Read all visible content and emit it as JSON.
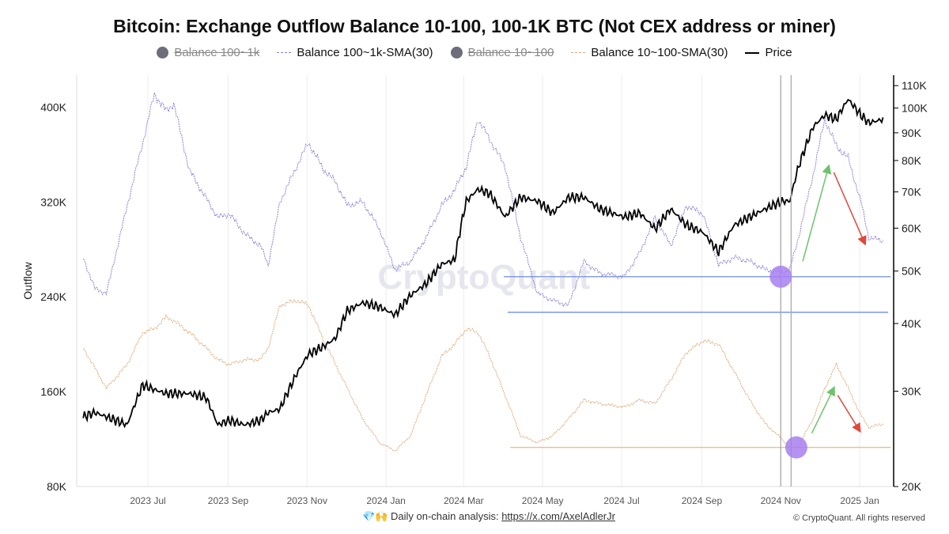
{
  "chart_data": {
    "type": "line",
    "title": "Bitcoin: Exchange Outflow Balance 10-100, 100-1K BTC (Not CEX address or miner)",
    "ylabel": "Outflow",
    "ylim": [
      80000,
      427000
    ],
    "y2lim": [
      20000,
      115000
    ],
    "y2scale": "log",
    "xlim": [
      "2023-05-07",
      "2025-01-26"
    ],
    "grid": "vertical",
    "legend_position": "top",
    "x_ticks": [
      "2023 Jul",
      "2023 Sep",
      "2023 Nov",
      "2024 Jan",
      "2024 Mar",
      "2024 May",
      "2024 Jul",
      "2024 Sep",
      "2024 Nov",
      "2025 Jan"
    ],
    "x_tick_dates": [
      "2023-07-01",
      "2023-09-01",
      "2023-11-01",
      "2024-01-01",
      "2024-03-01",
      "2024-05-01",
      "2024-07-01",
      "2024-09-01",
      "2024-11-01",
      "2025-01-01"
    ],
    "y_ticks": [
      "80K",
      "160K",
      "240K",
      "320K",
      "400K"
    ],
    "y_tick_values": [
      80000,
      160000,
      240000,
      320000,
      400000
    ],
    "y2_ticks": [
      "20K",
      "30K",
      "40K",
      "50K",
      "60K",
      "70K",
      "80K",
      "90K",
      "100K",
      "110K"
    ],
    "y2_tick_values": [
      20000,
      30000,
      40000,
      50000,
      60000,
      70000,
      80000,
      90000,
      100000,
      110000
    ],
    "legend": [
      {
        "label": "Balance 100~1k",
        "hidden": true,
        "color": "#6e6e7a"
      },
      {
        "label": "Balance 100~1k-SMA(30)",
        "hidden": false,
        "color": "#8f7fd6"
      },
      {
        "label": "Balance 10~100",
        "hidden": true,
        "color": "#6e6e7a"
      },
      {
        "label": "Balance 10~100-SMA(30)",
        "hidden": false,
        "color": "#e0a878"
      },
      {
        "label": "Price",
        "hidden": false,
        "color": "#000000"
      }
    ],
    "dates": [
      "2023-05-12",
      "2023-05-21",
      "2023-05-30",
      "2023-06-15",
      "2023-06-27",
      "2023-07-06",
      "2023-07-15",
      "2023-07-21",
      "2023-08-02",
      "2023-08-15",
      "2023-08-24",
      "2023-09-02",
      "2023-09-14",
      "2023-09-26",
      "2023-10-02",
      "2023-10-11",
      "2023-10-24",
      "2023-11-02",
      "2023-11-14",
      "2023-11-23",
      "2023-12-02",
      "2023-12-14",
      "2023-12-27",
      "2024-01-08",
      "2024-01-20",
      "2024-02-01",
      "2024-02-13",
      "2024-02-23",
      "2024-03-03",
      "2024-03-12",
      "2024-03-21",
      "2024-04-02",
      "2024-04-14",
      "2024-04-27",
      "2024-05-09",
      "2024-05-21",
      "2024-06-02",
      "2024-06-14",
      "2024-07-03",
      "2024-07-15",
      "2024-07-27",
      "2024-08-08",
      "2024-08-20",
      "2024-09-02",
      "2024-09-14",
      "2024-09-26",
      "2024-10-08",
      "2024-10-20",
      "2024-11-02",
      "2024-11-08",
      "2024-11-14",
      "2024-11-26",
      "2024-12-05",
      "2024-12-14",
      "2024-12-23",
      "2025-01-02",
      "2025-01-08",
      "2025-01-20"
    ],
    "series": [
      {
        "name": "Balance 100~1k-SMA(30)",
        "axis": "left",
        "color": "#8f7fd6",
        "style": "dashed",
        "values": [
          273000,
          247000,
          243000,
          317000,
          370000,
          411000,
          397000,
          403000,
          347000,
          323000,
          307000,
          310000,
          293000,
          283000,
          267000,
          320000,
          350000,
          370000,
          347000,
          337000,
          317000,
          320000,
          297000,
          263000,
          270000,
          290000,
          317000,
          330000,
          350000,
          390000,
          373000,
          350000,
          290000,
          243000,
          237000,
          233000,
          270000,
          260000,
          257000,
          277000,
          307000,
          283000,
          317000,
          310000,
          267000,
          273000,
          270000,
          263000,
          260000,
          263000,
          287000,
          343000,
          390000,
          367000,
          357000,
          320000,
          290000,
          287000
        ]
      },
      {
        "name": "Balance 10~100-SMA(30)",
        "axis": "left",
        "color": "#e0a878",
        "style": "dashed",
        "values": [
          197000,
          180000,
          163000,
          183000,
          210000,
          213000,
          223000,
          220000,
          210000,
          197000,
          187000,
          183000,
          187000,
          187000,
          197000,
          233000,
          237000,
          233000,
          203000,
          183000,
          163000,
          137000,
          117000,
          110000,
          123000,
          157000,
          190000,
          200000,
          213000,
          210000,
          190000,
          157000,
          123000,
          117000,
          123000,
          137000,
          153000,
          150000,
          147000,
          153000,
          150000,
          170000,
          193000,
          203000,
          200000,
          177000,
          153000,
          133000,
          120000,
          113000,
          113000,
          137000,
          163000,
          183000,
          163000,
          140000,
          130000,
          133000
        ]
      },
      {
        "name": "Price",
        "axis": "right",
        "color": "#000000",
        "style": "solid",
        "values": [
          26900,
          27400,
          26900,
          26000,
          30800,
          30200,
          29700,
          29700,
          29700,
          29200,
          26000,
          26500,
          26000,
          26500,
          27400,
          27800,
          32300,
          35100,
          36300,
          37600,
          42200,
          43700,
          42900,
          41500,
          45100,
          47400,
          51500,
          52400,
          67300,
          70800,
          69500,
          62900,
          68400,
          67300,
          64000,
          68400,
          68400,
          65100,
          62900,
          64000,
          59800,
          65100,
          60800,
          58900,
          54200,
          60800,
          62900,
          65100,
          67300,
          67300,
          76900,
          92300,
          97000,
          95400,
          103800,
          97000,
          93900,
          95400
        ]
      }
    ],
    "annotations": {
      "hlines": [
        {
          "value": 257000,
          "from": "2024-04-01",
          "to": "2025-01-25",
          "color": "#6f8ee8"
        },
        {
          "value": 227000,
          "from": "2024-04-04",
          "to": "2025-01-23",
          "color": "#6f8ee8"
        },
        {
          "value": 113000,
          "from": "2024-04-06",
          "to": "2025-01-25",
          "color": "#e8c27a"
        }
      ],
      "vlines": [
        "2024-11-01",
        "2024-11-09"
      ],
      "circles": [
        {
          "date": "2024-11-01",
          "value": 257000,
          "color": "#a77ff0"
        },
        {
          "date": "2024-11-13",
          "value": 113000,
          "color": "#a77ff0"
        }
      ],
      "arrows": [
        {
          "from": [
            "2024-11-18",
            270000
          ],
          "to": [
            "2024-12-08",
            350000
          ],
          "color": "#6cc36c"
        },
        {
          "from": [
            "2024-11-25",
            125000
          ],
          "to": [
            "2024-12-12",
            163000
          ],
          "color": "#6cc36c"
        },
        {
          "from": [
            "2024-12-12",
            345000
          ],
          "to": [
            "2025-01-05",
            285000
          ],
          "color": "#e0483c"
        },
        {
          "from": [
            "2024-12-15",
            157000
          ],
          "to": [
            "2025-01-01",
            127000
          ],
          "color": "#e0483c"
        }
      ]
    },
    "watermark": "CryptoQuant"
  },
  "footer": {
    "emoji": "💎🙌",
    "text": "Daily on-chain analysis: ",
    "link": "https://x.com/AxelAdlerJr",
    "copyright": "© CryptoQuant. All rights reserved"
  }
}
